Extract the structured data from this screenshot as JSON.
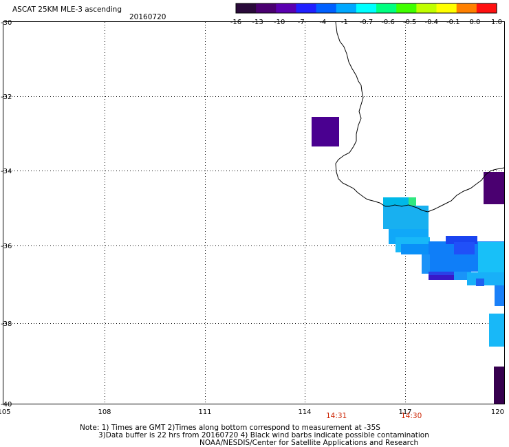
{
  "header": {
    "title": "ASCAT 25KM MLE-3 ascending",
    "date": "20160720"
  },
  "colorbar": {
    "labels": [
      "-16",
      "-13",
      "-10",
      "-7",
      "-4",
      "-1",
      "-0.7",
      "-0.6",
      "-0.5",
      "-0.4",
      "-0.1",
      "0.0",
      "1.0"
    ],
    "colors": [
      "#2a0a3a",
      "#4a0070",
      "#5a00b0",
      "#2020ff",
      "#0060ff",
      "#00a8ff",
      "#00ffff",
      "#00ff80",
      "#40ff00",
      "#c0ff00",
      "#ffff00",
      "#ff8000",
      "#ff1010"
    ]
  },
  "axes": {
    "lat_labels": [
      "-30",
      "-32",
      "-34",
      "-36",
      "-38",
      "-40"
    ],
    "lon_labels": [
      "105",
      "108",
      "111",
      "114",
      "117",
      "120"
    ],
    "lat_range": [
      -40,
      -30
    ],
    "lon_range": [
      105,
      120
    ]
  },
  "times": [
    {
      "label": "14:31",
      "color": "#cc0000"
    },
    {
      "label": "14:30",
      "color": "#cc0000"
    }
  ],
  "notes": {
    "line1": "Note: 1) Times are GMT 2)Times along bottom correspond to measurement at -35S",
    "line2": "3)Data buffer is 22 hrs from 20160720 4) Black wind barbs indicate possible contamination",
    "line3": "NOAA/NESDIS/Center for Satellite Applications and Research"
  }
}
